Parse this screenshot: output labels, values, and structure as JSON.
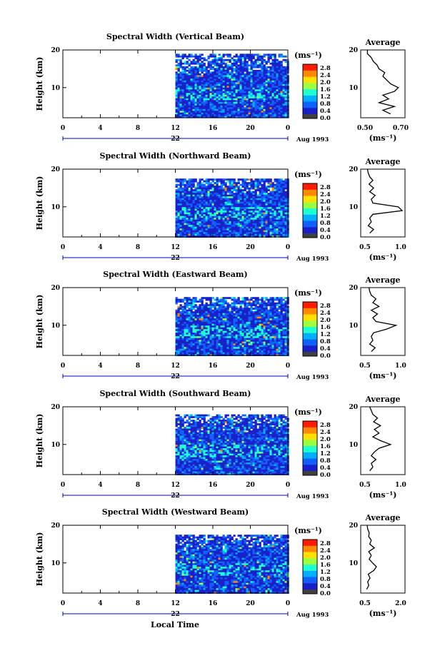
{
  "figure": {
    "x_axis_label": "Local Time",
    "time_ticks": [
      "0",
      "4",
      "8",
      "12",
      "16",
      "20",
      "0"
    ],
    "date_left": "22",
    "date_right": "Aug 1993",
    "height_axis_label": "Height (km)",
    "height_ticks": [
      "20",
      "10"
    ],
    "unit_label": "(ms⁻¹)",
    "colorbar_ticks": [
      "2.8",
      "2.4",
      "2.0",
      "1.6",
      "1.2",
      "0.8",
      "0.4",
      "0.0"
    ],
    "colorbar_colors": [
      "#ff1a00",
      "#ff8a00",
      "#ffe000",
      "#9cff40",
      "#20ffd0",
      "#00b0ff",
      "#1060ff",
      "#1a20c8",
      "#404040"
    ],
    "average_title": "Average"
  },
  "chart_data": [
    {
      "type": "heatmap",
      "title": "Spectral Width (Vertical Beam)",
      "xlabel": "Local Time",
      "ylabel": "Height (km)",
      "x_range_hours": [
        0,
        24
      ],
      "y_range_km": [
        2,
        20
      ],
      "data_start_hour": 12,
      "data_top_km": 19,
      "average_profile": {
        "xlabel": "(ms⁻¹)",
        "xticks": [
          "0.50",
          "0.70"
        ],
        "xlim": [
          0.5,
          0.7
        ],
        "ylim": [
          2,
          20
        ],
        "yticks": [
          "20",
          "10"
        ],
        "heights_km": [
          3,
          4,
          5,
          6,
          7,
          8,
          9,
          10,
          11,
          12,
          13,
          14,
          15,
          16,
          17,
          18,
          19,
          20
        ],
        "values": [
          0.64,
          0.6,
          0.66,
          0.58,
          0.63,
          0.6,
          0.66,
          0.68,
          0.64,
          0.62,
          0.6,
          0.61,
          0.58,
          0.57,
          0.55,
          0.54,
          0.52,
          0.52
        ]
      }
    },
    {
      "type": "heatmap",
      "title": "Spectral Width (Northward Beam)",
      "xlabel": "Local Time",
      "ylabel": "Height (km)",
      "x_range_hours": [
        0,
        24
      ],
      "y_range_km": [
        2,
        20
      ],
      "data_start_hour": 12,
      "data_top_km": 17.5,
      "average_profile": {
        "xlabel": "(ms⁻¹)",
        "xticks": [
          "0.5",
          "1.0"
        ],
        "xlim": [
          0.5,
          1.0
        ],
        "ylim": [
          2,
          20
        ],
        "yticks": [
          "20",
          "10"
        ],
        "heights_km": [
          3,
          4,
          5,
          6,
          7,
          8,
          9,
          10,
          11,
          12,
          13,
          14,
          15,
          16,
          17,
          18,
          19,
          20
        ],
        "values": [
          0.58,
          0.63,
          0.56,
          0.6,
          0.58,
          0.62,
          1.0,
          0.95,
          0.62,
          0.6,
          0.65,
          0.58,
          0.63,
          0.57,
          0.62,
          0.58,
          0.56,
          0.55
        ]
      }
    },
    {
      "type": "heatmap",
      "title": "Spectral Width (Eastward Beam)",
      "xlabel": "Local Time",
      "ylabel": "Height (km)",
      "x_range_hours": [
        0,
        24
      ],
      "y_range_km": [
        2,
        20
      ],
      "data_start_hour": 12,
      "data_top_km": 17.5,
      "average_profile": {
        "xlabel": "(ms⁻¹)",
        "xticks": [
          "0.5",
          "1.0"
        ],
        "xlim": [
          0.5,
          1.0
        ],
        "ylim": [
          2,
          20
        ],
        "yticks": [
          "20",
          "10"
        ],
        "heights_km": [
          3,
          4,
          5,
          6,
          7,
          8,
          9,
          10,
          11,
          12,
          13,
          14,
          15,
          16,
          17,
          18,
          19,
          20
        ],
        "values": [
          0.6,
          0.65,
          0.58,
          0.62,
          0.6,
          0.63,
          0.8,
          0.92,
          0.66,
          0.62,
          0.68,
          0.6,
          0.7,
          0.62,
          0.66,
          0.6,
          0.58,
          0.57
        ]
      }
    },
    {
      "type": "heatmap",
      "title": "Spectral Width (Southward Beam)",
      "xlabel": "Local Time",
      "ylabel": "Height (km)",
      "x_range_hours": [
        0,
        24
      ],
      "y_range_km": [
        2,
        20
      ],
      "data_start_hour": 12,
      "data_top_km": 18,
      "average_profile": {
        "xlabel": "(ms⁻¹)",
        "xticks": [
          "0.5",
          "1.0"
        ],
        "xlim": [
          0.5,
          1.0
        ],
        "ylim": [
          2,
          20
        ],
        "yticks": [
          "20",
          "10"
        ],
        "heights_km": [
          3,
          4,
          5,
          6,
          7,
          8,
          9,
          10,
          11,
          12,
          13,
          14,
          15,
          16,
          17,
          18,
          19,
          20
        ],
        "values": [
          0.58,
          0.62,
          0.6,
          0.66,
          0.6,
          0.64,
          0.7,
          0.85,
          0.72,
          0.62,
          0.7,
          0.64,
          0.72,
          0.63,
          0.68,
          0.62,
          0.6,
          0.58
        ]
      }
    },
    {
      "type": "heatmap",
      "title": "Spectral Width (Westward Beam)",
      "xlabel": "Local Time",
      "ylabel": "Height (km)",
      "x_range_hours": [
        0,
        24
      ],
      "y_range_km": [
        2,
        20
      ],
      "data_start_hour": 12,
      "data_top_km": 17.5,
      "average_profile": {
        "xlabel": "(ms⁻¹)",
        "xticks": [
          "0.5",
          "2.0"
        ],
        "xlim": [
          0.5,
          2.0
        ],
        "ylim": [
          2,
          20
        ],
        "yticks": [
          "20",
          "10"
        ],
        "heights_km": [
          3,
          4,
          5,
          6,
          7,
          8,
          9,
          10,
          11,
          12,
          13,
          14,
          15,
          16,
          17,
          18,
          19,
          20
        ],
        "values": [
          0.62,
          0.7,
          0.66,
          0.75,
          0.68,
          0.9,
          1.0,
          0.85,
          0.72,
          0.8,
          0.7,
          0.92,
          0.74,
          0.8,
          0.7,
          0.72,
          0.66,
          0.64
        ]
      }
    }
  ]
}
